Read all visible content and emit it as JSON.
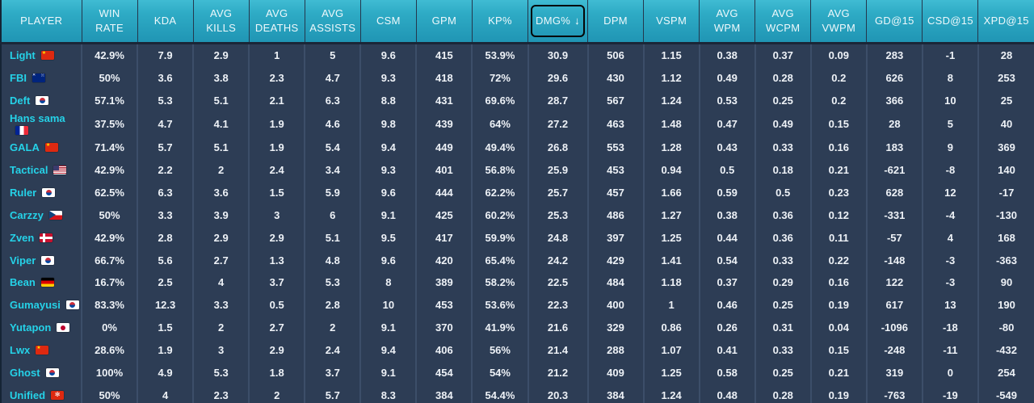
{
  "table": {
    "sort": {
      "column": "DMG%",
      "direction": "desc",
      "arrow": "↓"
    },
    "columns": [
      {
        "key": "player",
        "label": "PLAYER"
      },
      {
        "key": "win_rate",
        "label": "WIN\nRATE"
      },
      {
        "key": "kda",
        "label": "KDA"
      },
      {
        "key": "avg_kills",
        "label": "AVG\nKILLS"
      },
      {
        "key": "avg_deaths",
        "label": "AVG\nDEATHS"
      },
      {
        "key": "avg_assists",
        "label": "AVG\nASSISTS"
      },
      {
        "key": "csm",
        "label": "CSM"
      },
      {
        "key": "gpm",
        "label": "GPM"
      },
      {
        "key": "kp_pct",
        "label": "KP%"
      },
      {
        "key": "dmg_pct",
        "label": "DMG%",
        "sorted": true
      },
      {
        "key": "dpm",
        "label": "DPM"
      },
      {
        "key": "vspm",
        "label": "VSPM"
      },
      {
        "key": "avg_wpm",
        "label": "AVG\nWPM"
      },
      {
        "key": "avg_wcpm",
        "label": "AVG\nWCPM"
      },
      {
        "key": "avg_vwpm",
        "label": "AVG\nVWPM"
      },
      {
        "key": "gd_at_15",
        "label": "GD@15"
      },
      {
        "key": "csd_at_15",
        "label": "CSD@15"
      },
      {
        "key": "xpd_at_15",
        "label": "XPD@15"
      }
    ],
    "rows": [
      {
        "player": "Light",
        "flag": "cn",
        "values": [
          "42.9%",
          "7.9",
          "2.9",
          "1",
          "5",
          "9.6",
          "415",
          "53.9%",
          "30.9",
          "506",
          "1.15",
          "0.38",
          "0.37",
          "0.09",
          "283",
          "-1",
          "28"
        ]
      },
      {
        "player": "FBI",
        "flag": "au",
        "values": [
          "50%",
          "3.6",
          "3.8",
          "2.3",
          "4.7",
          "9.3",
          "418",
          "72%",
          "29.6",
          "430",
          "1.12",
          "0.49",
          "0.28",
          "0.2",
          "626",
          "8",
          "253"
        ]
      },
      {
        "player": "Deft",
        "flag": "kr",
        "values": [
          "57.1%",
          "5.3",
          "5.1",
          "2.1",
          "6.3",
          "8.8",
          "431",
          "69.6%",
          "28.7",
          "567",
          "1.24",
          "0.53",
          "0.25",
          "0.2",
          "366",
          "10",
          "25"
        ]
      },
      {
        "player": "Hans sama",
        "flag": "fr",
        "values": [
          "37.5%",
          "4.7",
          "4.1",
          "1.9",
          "4.6",
          "9.8",
          "439",
          "64%",
          "27.2",
          "463",
          "1.48",
          "0.47",
          "0.49",
          "0.15",
          "28",
          "5",
          "40"
        ]
      },
      {
        "player": "GALA",
        "flag": "cn",
        "values": [
          "71.4%",
          "5.7",
          "5.1",
          "1.9",
          "5.4",
          "9.4",
          "449",
          "49.4%",
          "26.8",
          "553",
          "1.28",
          "0.43",
          "0.33",
          "0.16",
          "183",
          "9",
          "369"
        ]
      },
      {
        "player": "Tactical",
        "flag": "us",
        "values": [
          "42.9%",
          "2.2",
          "2",
          "2.4",
          "3.4",
          "9.3",
          "401",
          "56.8%",
          "25.9",
          "453",
          "0.94",
          "0.5",
          "0.18",
          "0.21",
          "-621",
          "-8",
          "140"
        ]
      },
      {
        "player": "Ruler",
        "flag": "kr",
        "values": [
          "62.5%",
          "6.3",
          "3.6",
          "1.5",
          "5.9",
          "9.6",
          "444",
          "62.2%",
          "25.7",
          "457",
          "1.66",
          "0.59",
          "0.5",
          "0.23",
          "628",
          "12",
          "-17"
        ]
      },
      {
        "player": "Carzzy",
        "flag": "cz",
        "values": [
          "50%",
          "3.3",
          "3.9",
          "3",
          "6",
          "9.1",
          "425",
          "60.2%",
          "25.3",
          "486",
          "1.27",
          "0.38",
          "0.36",
          "0.12",
          "-331",
          "-4",
          "-130"
        ]
      },
      {
        "player": "Zven",
        "flag": "dk",
        "values": [
          "42.9%",
          "2.8",
          "2.9",
          "2.9",
          "5.1",
          "9.5",
          "417",
          "59.9%",
          "24.8",
          "397",
          "1.25",
          "0.44",
          "0.36",
          "0.11",
          "-57",
          "4",
          "168"
        ]
      },
      {
        "player": "Viper",
        "flag": "kr",
        "values": [
          "66.7%",
          "5.6",
          "2.7",
          "1.3",
          "4.8",
          "9.6",
          "420",
          "65.4%",
          "24.2",
          "429",
          "1.41",
          "0.54",
          "0.33",
          "0.22",
          "-148",
          "-3",
          "-363"
        ]
      },
      {
        "player": "Bean",
        "flag": "de",
        "values": [
          "16.7%",
          "2.5",
          "4",
          "3.7",
          "5.3",
          "8",
          "389",
          "58.2%",
          "22.5",
          "484",
          "1.18",
          "0.37",
          "0.29",
          "0.16",
          "122",
          "-3",
          "90"
        ]
      },
      {
        "player": "Gumayusi",
        "flag": "kr",
        "values": [
          "83.3%",
          "12.3",
          "3.3",
          "0.5",
          "2.8",
          "10",
          "453",
          "53.6%",
          "22.3",
          "400",
          "1",
          "0.46",
          "0.25",
          "0.19",
          "617",
          "13",
          "190"
        ]
      },
      {
        "player": "Yutapon",
        "flag": "jp",
        "values": [
          "0%",
          "1.5",
          "2",
          "2.7",
          "2",
          "9.1",
          "370",
          "41.9%",
          "21.6",
          "329",
          "0.86",
          "0.26",
          "0.31",
          "0.04",
          "-1096",
          "-18",
          "-80"
        ]
      },
      {
        "player": "Lwx",
        "flag": "cn",
        "values": [
          "28.6%",
          "1.9",
          "3",
          "2.9",
          "2.4",
          "9.4",
          "406",
          "56%",
          "21.4",
          "288",
          "1.07",
          "0.41",
          "0.33",
          "0.15",
          "-248",
          "-11",
          "-432"
        ]
      },
      {
        "player": "Ghost",
        "flag": "kr",
        "values": [
          "100%",
          "4.9",
          "5.3",
          "1.8",
          "3.7",
          "9.1",
          "454",
          "54%",
          "21.2",
          "409",
          "1.25",
          "0.58",
          "0.25",
          "0.21",
          "319",
          "0",
          "254"
        ]
      },
      {
        "player": "Unified",
        "flag": "hk",
        "values": [
          "50%",
          "4",
          "2.3",
          "2",
          "5.7",
          "8.3",
          "384",
          "54.4%",
          "20.3",
          "384",
          "1.24",
          "0.48",
          "0.28",
          "0.19",
          "-763",
          "-19",
          "-549"
        ]
      }
    ]
  },
  "colors": {
    "header_teal": "#2babc5",
    "body_background": "#2d3d55",
    "column_border": "#3c4e69",
    "player_name": "#25d2e8",
    "value_text": "#eef2f7",
    "focus_ring": "#060606"
  },
  "icons": {
    "sort_descending": "↓"
  }
}
